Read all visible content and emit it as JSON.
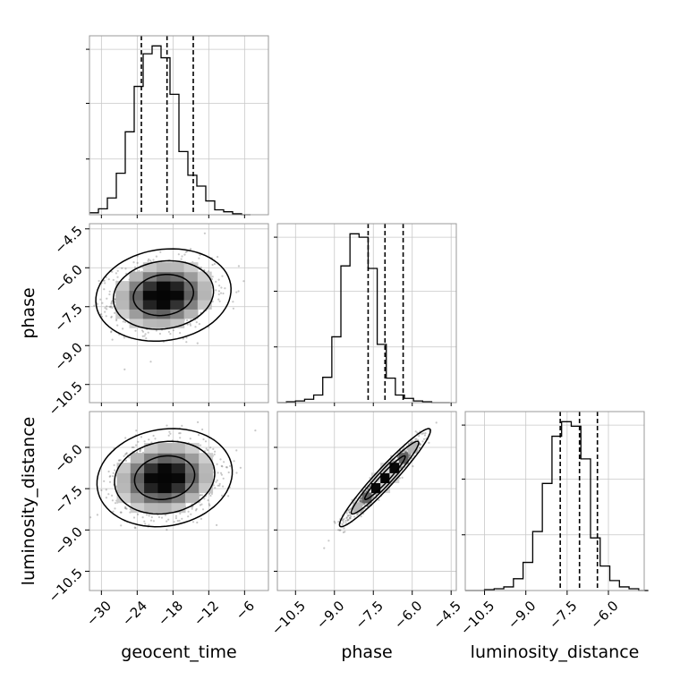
{
  "chart_data": {
    "type": "corner",
    "parameters": [
      {
        "name": "geocent_time",
        "range": [
          -32,
          -2
        ],
        "ticks": [
          -30,
          -24,
          -18,
          -12,
          -6
        ],
        "tick_labels": [
          "−30",
          "−24",
          "−18",
          "−12",
          "−6"
        ]
      },
      {
        "name": "phase",
        "range": [
          -11.2,
          -4.3
        ],
        "ticks": [
          -10.5,
          -9.0,
          -7.5,
          -6.0,
          -4.5
        ],
        "tick_labels": [
          "−10.5",
          "−9.0",
          "−7.5",
          "−6.0",
          "−4.5"
        ]
      },
      {
        "name": "luminosity_distance",
        "range": [
          -11.2,
          -4.7
        ],
        "ticks": [
          -10.5,
          -9.0,
          -7.5,
          -6.0
        ],
        "tick_labels": [
          "−10.5",
          "−9.0",
          "−7.5",
          "−6.0"
        ]
      }
    ],
    "histograms": [
      {
        "parameter": "geocent_time",
        "bin_edges": [
          -32,
          -30.5,
          -29,
          -27.5,
          -26,
          -24.5,
          -23,
          -21.5,
          -20,
          -18.5,
          -17,
          -15.5,
          -14,
          -12.5,
          -11,
          -9.5,
          -8,
          -6.5,
          -5
        ],
        "counts": [
          2,
          6,
          17,
          42,
          84,
          130,
          163,
          171,
          159,
          122,
          64,
          40,
          29,
          14,
          5,
          3,
          1,
          0
        ],
        "quantiles": [
          -23.3,
          -19.0,
          -14.6
        ]
      },
      {
        "parameter": "phase",
        "bin_edges": [
          -11.2,
          -10.85,
          -10.5,
          -10.15,
          -9.8,
          -9.45,
          -9.1,
          -8.75,
          -8.4,
          -8.05,
          -7.7,
          -7.35,
          -7.0,
          -6.65,
          -6.3,
          -5.95,
          -5.6,
          -5.25,
          -4.9,
          -4.55
        ],
        "counts": [
          0,
          1,
          2,
          4,
          9,
          30,
          78,
          162,
          200,
          196,
          159,
          69,
          29,
          9,
          5,
          2,
          1,
          0,
          0
        ],
        "quantiles": [
          -7.7,
          -7.05,
          -6.35
        ]
      },
      {
        "parameter": "luminosity_distance",
        "bin_edges": [
          -11.2,
          -10.85,
          -10.5,
          -10.15,
          -9.8,
          -9.45,
          -9.1,
          -8.75,
          -8.4,
          -8.05,
          -7.7,
          -7.35,
          -7.0,
          -6.65,
          -6.3,
          -5.95,
          -5.6,
          -5.25,
          -4.9,
          -4.55
        ],
        "counts": [
          0,
          0,
          1,
          2,
          4,
          13,
          31,
          65,
          118,
          170,
          186,
          181,
          145,
          58,
          27,
          11,
          4,
          2,
          0
        ],
        "quantiles": [
          -7.75,
          -7.05,
          -6.4
        ]
      }
    ],
    "density_panels": [
      {
        "x": "geocent_time",
        "y": "phase",
        "center": [
          -19.6,
          -7.05
        ],
        "std": [
          4.2,
          0.66
        ],
        "correlation": 0.12
      },
      {
        "x": "geocent_time",
        "y": "luminosity_distance",
        "center": [
          -19.4,
          -7.1
        ],
        "std": [
          4.2,
          0.66
        ],
        "correlation": 0.12
      },
      {
        "x": "phase",
        "y": "luminosity_distance",
        "center": [
          -7.05,
          -7.1
        ],
        "std": [
          0.65,
          0.66
        ],
        "correlation": 0.96
      }
    ],
    "x_axis_labels": [
      "geocent_time",
      "phase",
      "luminosity_distance"
    ],
    "y_axis_labels": [
      "phase",
      "luminosity_distance"
    ],
    "grid": true
  }
}
